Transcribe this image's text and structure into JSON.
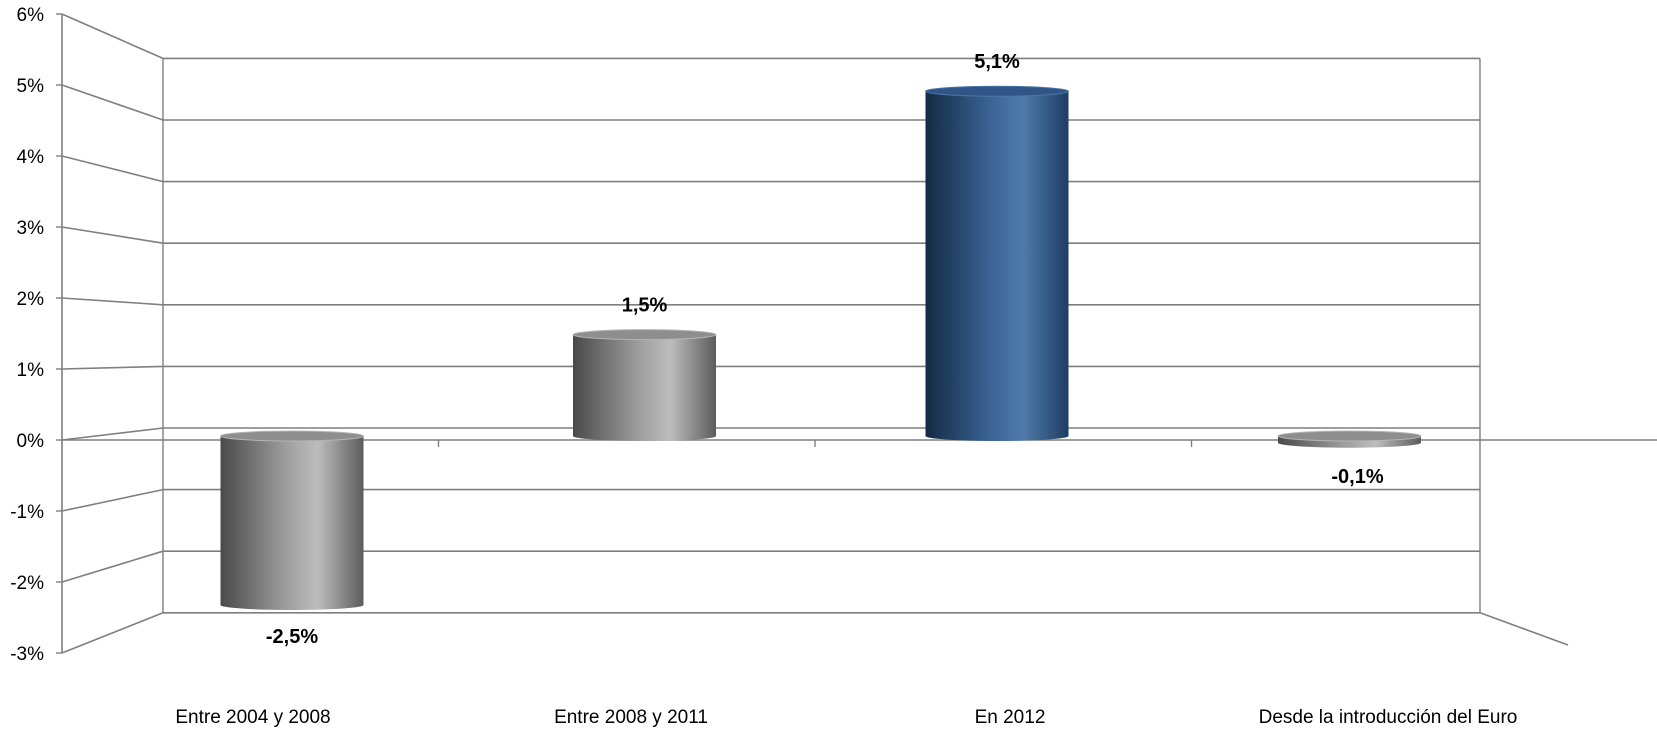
{
  "chart_data": {
    "type": "bar",
    "categories": [
      "Entre 2004 y 2008",
      "Entre 2008 y 2011",
      "En 2012",
      "Desde la introducción del Euro"
    ],
    "values": [
      -2.5,
      1.5,
      5.1,
      -0.1
    ],
    "data_labels": [
      "-2,5%",
      "1,5%",
      "5,1%",
      "-0,1%"
    ],
    "y_ticks": [
      -3,
      -2,
      -1,
      0,
      1,
      2,
      3,
      4,
      5,
      6
    ],
    "y_tick_labels": [
      "-3%",
      "-2%",
      "-1%",
      "0%",
      "1%",
      "2%",
      "3%",
      "4%",
      "5%",
      "6%"
    ],
    "ylim": [
      -3,
      6
    ],
    "title": "",
    "xlabel": "",
    "ylabel": "",
    "grid": true,
    "legend": "none",
    "style": "3d-cylinder",
    "colors": {
      "default_bar": "#a9a9a9",
      "highlight_bar": "#3b6699",
      "grid": "#7f7f7f"
    },
    "highlight_index": 2
  }
}
